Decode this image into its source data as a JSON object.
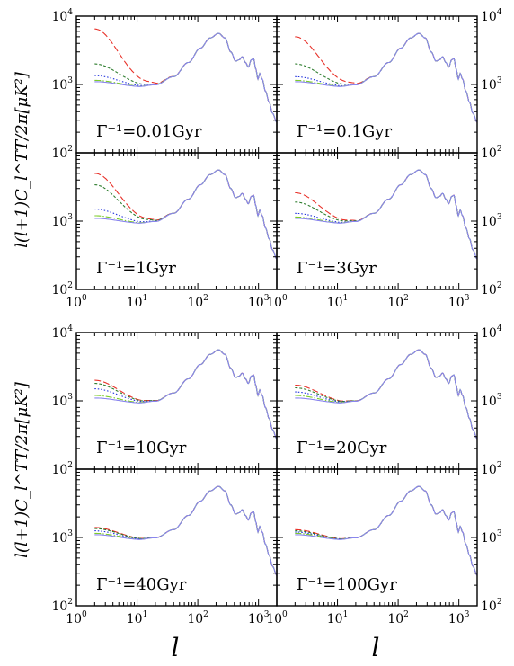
{
  "figure": {
    "y_axis_label": "l(l+1)C_l^TT/2π[μK²]",
    "x_axis_label": "l"
  },
  "chart_data": {
    "type": "line",
    "log_x": true,
    "log_y": true,
    "xlim": [
      1,
      2000
    ],
    "ylim": [
      100,
      10000
    ],
    "x_ticks": [
      {
        "value": 1,
        "base": "10",
        "exp": "0"
      },
      {
        "value": 10,
        "base": "10",
        "exp": "1"
      },
      {
        "value": 100,
        "base": "10",
        "exp": "2"
      },
      {
        "value": 1000,
        "base": "10",
        "exp": "3"
      }
    ],
    "y_ticks": [
      {
        "value": 100,
        "base": "10",
        "exp": "2"
      },
      {
        "value": 1000,
        "base": "10",
        "exp": "3"
      },
      {
        "value": 10000,
        "base": "10",
        "exp": "4"
      }
    ],
    "series_styles": [
      {
        "color": "#e8322a",
        "dash": "7,3"
      },
      {
        "color": "#2e7d2e",
        "dash": "3,2"
      },
      {
        "color": "#2233dd",
        "dash": "1.5,2"
      },
      {
        "color": "#7ccc2a",
        "dash": "7,2,1.5,2"
      },
      {
        "color": "#8a86ee",
        "dash": ""
      }
    ],
    "panels": [
      {
        "label": "Γ⁻¹=0.01Gyr",
        "low_l": [
          6500,
          2000,
          1350,
          1150,
          1100
        ]
      },
      {
        "label": "Γ⁻¹=0.1Gyr",
        "low_l": [
          5000,
          2000,
          1300,
          1150,
          1100
        ]
      },
      {
        "label": "Γ⁻¹=1Gyr",
        "low_l": [
          5000,
          3400,
          1500,
          1200,
          1100
        ]
      },
      {
        "label": "Γ⁻¹=3Gyr",
        "low_l": [
          2600,
          1900,
          1300,
          1150,
          1100
        ]
      },
      {
        "label": "Γ⁻¹=10Gyr",
        "low_l": [
          2000,
          1800,
          1500,
          1200,
          1100
        ]
      },
      {
        "label": "Γ⁻¹=20Gyr",
        "low_l": [
          1700,
          1550,
          1350,
          1200,
          1100
        ]
      },
      {
        "label": "Γ⁻¹=40Gyr",
        "low_l": [
          1400,
          1350,
          1250,
          1150,
          1100
        ]
      },
      {
        "label": "Γ⁻¹=100Gyr",
        "low_l": [
          1300,
          1250,
          1200,
          1150,
          1100
        ]
      }
    ]
  }
}
